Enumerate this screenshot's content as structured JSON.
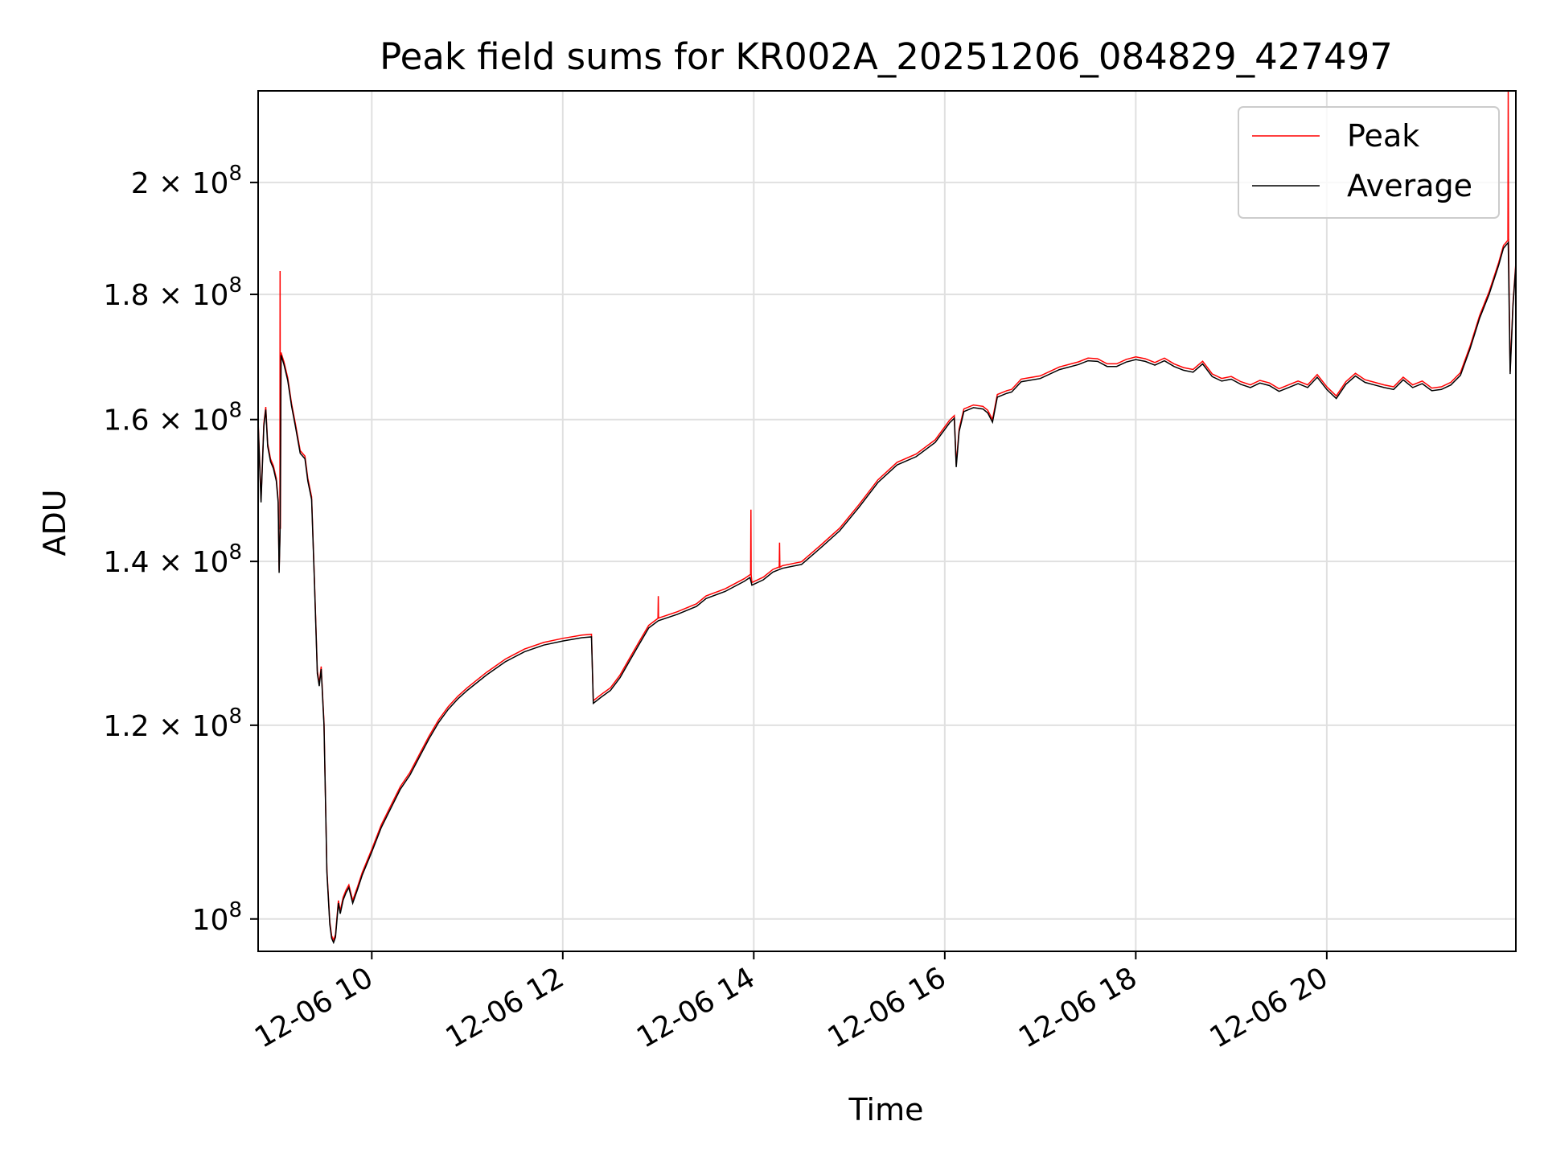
{
  "chart_data": {
    "type": "line",
    "title": "Peak field sums for KR002A_20251206_084829_427497",
    "xlabel": "Time",
    "ylabel": "ADU",
    "yscale": "log",
    "xlim_hours": [
      8.81,
      21.98
    ],
    "ylim": [
      97000000,
      218000000
    ],
    "grid": true,
    "legend_position": "upper right",
    "x_ticks": [
      {
        "hour": 10,
        "label": "12-06 10"
      },
      {
        "hour": 12,
        "label": "12-06 12"
      },
      {
        "hour": 14,
        "label": "12-06 14"
      },
      {
        "hour": 16,
        "label": "12-06 16"
      },
      {
        "hour": 18,
        "label": "12-06 18"
      },
      {
        "hour": 20,
        "label": "12-06 20"
      }
    ],
    "y_ticks": [
      {
        "value": 100000000,
        "mantissa": "",
        "exponent": "8",
        "base": "10"
      },
      {
        "value": 120000000,
        "mantissa": "1.2",
        "exponent": "8",
        "base": "10"
      },
      {
        "value": 140000000,
        "mantissa": "1.4",
        "exponent": "8",
        "base": "10"
      },
      {
        "value": 160000000,
        "mantissa": "1.6",
        "exponent": "8",
        "base": "10"
      },
      {
        "value": 180000000,
        "mantissa": "1.8",
        "exponent": "8",
        "base": "10"
      },
      {
        "value": 200000000,
        "mantissa": "2",
        "exponent": "8",
        "base": "10"
      }
    ],
    "times_symbol": "×",
    "series": [
      {
        "name": "Peak",
        "color": "#ff0000",
        "spikes": [
          {
            "hour": 9.04,
            "value": 184000000
          },
          {
            "hour": 13.0,
            "value": 135500000
          },
          {
            "hour": 13.97,
            "value": 147000000
          },
          {
            "hour": 14.27,
            "value": 142500000
          },
          {
            "hour": 21.9,
            "value": 218000000
          }
        ]
      },
      {
        "name": "Average",
        "color": "#000000",
        "points": [
          [
            8.81,
            159.5
          ],
          [
            8.84,
            148
          ],
          [
            8.87,
            159
          ],
          [
            8.89,
            161.5
          ],
          [
            8.91,
            156
          ],
          [
            8.94,
            153.8
          ],
          [
            8.97,
            152.8
          ],
          [
            9.0,
            151
          ],
          [
            9.02,
            148
          ],
          [
            9.03,
            138.5
          ],
          [
            9.04,
            144
          ],
          [
            9.05,
            170
          ],
          [
            9.08,
            168.5
          ],
          [
            9.12,
            166
          ],
          [
            9.16,
            162
          ],
          [
            9.2,
            159
          ],
          [
            9.25,
            155
          ],
          [
            9.3,
            154.2
          ],
          [
            9.33,
            151
          ],
          [
            9.37,
            148.4
          ],
          [
            9.4,
            137
          ],
          [
            9.43,
            126
          ],
          [
            9.45,
            124.5
          ],
          [
            9.47,
            126.5
          ],
          [
            9.5,
            120
          ],
          [
            9.53,
            104.5
          ],
          [
            9.56,
            99.5
          ],
          [
            9.58,
            98.2
          ],
          [
            9.6,
            97.8
          ],
          [
            9.62,
            98.3
          ],
          [
            9.65,
            101.5
          ],
          [
            9.67,
            100.5
          ],
          [
            9.7,
            101.8
          ],
          [
            9.73,
            102.5
          ],
          [
            9.76,
            103
          ],
          [
            9.8,
            101.5
          ],
          [
            9.85,
            102.8
          ],
          [
            9.9,
            104.2
          ],
          [
            10.0,
            106.5
          ],
          [
            10.1,
            109
          ],
          [
            10.2,
            111
          ],
          [
            10.3,
            113
          ],
          [
            10.4,
            114.5
          ],
          [
            10.5,
            116.5
          ],
          [
            10.6,
            118.5
          ],
          [
            10.7,
            120.3
          ],
          [
            10.8,
            121.8
          ],
          [
            10.9,
            123
          ],
          [
            11.0,
            124
          ],
          [
            11.2,
            125.8
          ],
          [
            11.4,
            127.4
          ],
          [
            11.6,
            128.6
          ],
          [
            11.8,
            129.4
          ],
          [
            12.0,
            129.9
          ],
          [
            12.2,
            130.3
          ],
          [
            12.3,
            130.4
          ],
          [
            12.32,
            122.5
          ],
          [
            12.4,
            123.2
          ],
          [
            12.5,
            124
          ],
          [
            12.6,
            125.5
          ],
          [
            12.7,
            127.5
          ],
          [
            12.8,
            129.5
          ],
          [
            12.9,
            131.5
          ],
          [
            13.0,
            132.4
          ],
          [
            13.2,
            133.2
          ],
          [
            13.4,
            134.2
          ],
          [
            13.5,
            135.2
          ],
          [
            13.7,
            136.1
          ],
          [
            13.9,
            137.4
          ],
          [
            13.96,
            137.9
          ],
          [
            13.98,
            136.9
          ],
          [
            14.1,
            137.6
          ],
          [
            14.2,
            138.6
          ],
          [
            14.26,
            138.9
          ],
          [
            14.3,
            139.1
          ],
          [
            14.5,
            139.6
          ],
          [
            14.7,
            141.8
          ],
          [
            14.9,
            144.1
          ],
          [
            15.1,
            147.3
          ],
          [
            15.3,
            150.8
          ],
          [
            15.5,
            153.3
          ],
          [
            15.7,
            154.5
          ],
          [
            15.9,
            156.6
          ],
          [
            16.05,
            159.5
          ],
          [
            16.1,
            160.2
          ],
          [
            16.12,
            153
          ],
          [
            16.15,
            158.2
          ],
          [
            16.2,
            161.2
          ],
          [
            16.3,
            161.8
          ],
          [
            16.4,
            161.6
          ],
          [
            16.45,
            161
          ],
          [
            16.5,
            159.6
          ],
          [
            16.55,
            163.4
          ],
          [
            16.65,
            164
          ],
          [
            16.7,
            164.2
          ],
          [
            16.8,
            165.8
          ],
          [
            17.0,
            166.3
          ],
          [
            17.2,
            167.7
          ],
          [
            17.4,
            168.5
          ],
          [
            17.5,
            169.1
          ],
          [
            17.6,
            169
          ],
          [
            17.7,
            168.2
          ],
          [
            17.8,
            168.2
          ],
          [
            17.9,
            168.9
          ],
          [
            18.0,
            169.3
          ],
          [
            18.1,
            169
          ],
          [
            18.2,
            168.4
          ],
          [
            18.3,
            169.1
          ],
          [
            18.4,
            168.2
          ],
          [
            18.5,
            167.6
          ],
          [
            18.6,
            167.3
          ],
          [
            18.7,
            168.6
          ],
          [
            18.8,
            166.6
          ],
          [
            18.9,
            165.9
          ],
          [
            19.0,
            166.2
          ],
          [
            19.1,
            165.4
          ],
          [
            19.2,
            164.9
          ],
          [
            19.3,
            165.6
          ],
          [
            19.4,
            165.2
          ],
          [
            19.5,
            164.3
          ],
          [
            19.6,
            164.9
          ],
          [
            19.7,
            165.5
          ],
          [
            19.8,
            164.9
          ],
          [
            19.9,
            166.5
          ],
          [
            20.0,
            164.6
          ],
          [
            20.1,
            163.2
          ],
          [
            20.2,
            165.4
          ],
          [
            20.3,
            166.7
          ],
          [
            20.4,
            165.7
          ],
          [
            20.5,
            165.3
          ],
          [
            20.6,
            164.9
          ],
          [
            20.7,
            164.6
          ],
          [
            20.8,
            166.1
          ],
          [
            20.9,
            164.9
          ],
          [
            21.0,
            165.5
          ],
          [
            21.1,
            164.4
          ],
          [
            21.2,
            164.6
          ],
          [
            21.3,
            165.3
          ],
          [
            21.4,
            166.8
          ],
          [
            21.5,
            171
          ],
          [
            21.6,
            176
          ],
          [
            21.7,
            180
          ],
          [
            21.8,
            185
          ],
          [
            21.85,
            188
          ],
          [
            21.9,
            189
          ],
          [
            21.92,
            167
          ],
          [
            21.95,
            178
          ],
          [
            21.98,
            185
          ]
        ]
      }
    ]
  }
}
